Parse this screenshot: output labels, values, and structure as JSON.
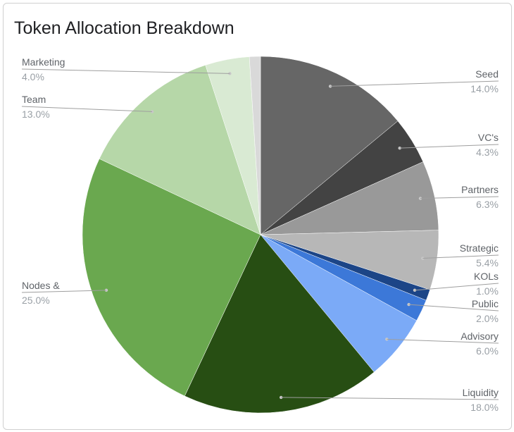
{
  "chart_data": {
    "type": "pie",
    "title": "Token Allocation Breakdown",
    "slices": [
      {
        "label": "Seed",
        "value_label": "14.0%",
        "value": 14.0,
        "color": "#666666"
      },
      {
        "label": "VC's",
        "value_label": "4.3%",
        "value": 4.3,
        "color": "#434343"
      },
      {
        "label": "Partners",
        "value_label": "6.3%",
        "value": 6.3,
        "color": "#999999"
      },
      {
        "label": "Strategic",
        "value_label": "5.4%",
        "value": 5.4,
        "color": "#b7b7b7"
      },
      {
        "label": "KOLs",
        "value_label": "1.0%",
        "value": 1.0,
        "color": "#1c4587"
      },
      {
        "label": "Public",
        "value_label": "2.0%",
        "value": 2.0,
        "color": "#3c78d8"
      },
      {
        "label": "Advisory",
        "value_label": "6.0%",
        "value": 6.0,
        "color": "#7baaf7"
      },
      {
        "label": "Liquidity",
        "value_label": "18.0%",
        "value": 18.0,
        "color": "#274e13"
      },
      {
        "label": "Nodes &",
        "value_label": "25.0%",
        "value": 25.0,
        "color": "#6aa84f"
      },
      {
        "label": "Team",
        "value_label": "13.0%",
        "value": 13.0,
        "color": "#b6d7a8"
      },
      {
        "label": "Marketing",
        "value_label": "4.0%",
        "value": 4.0,
        "color": "#d9ead3"
      },
      {
        "label": "",
        "value_label": "",
        "value": 1.0,
        "color": "#d9d9d9"
      }
    ],
    "legend": "outside labels"
  }
}
